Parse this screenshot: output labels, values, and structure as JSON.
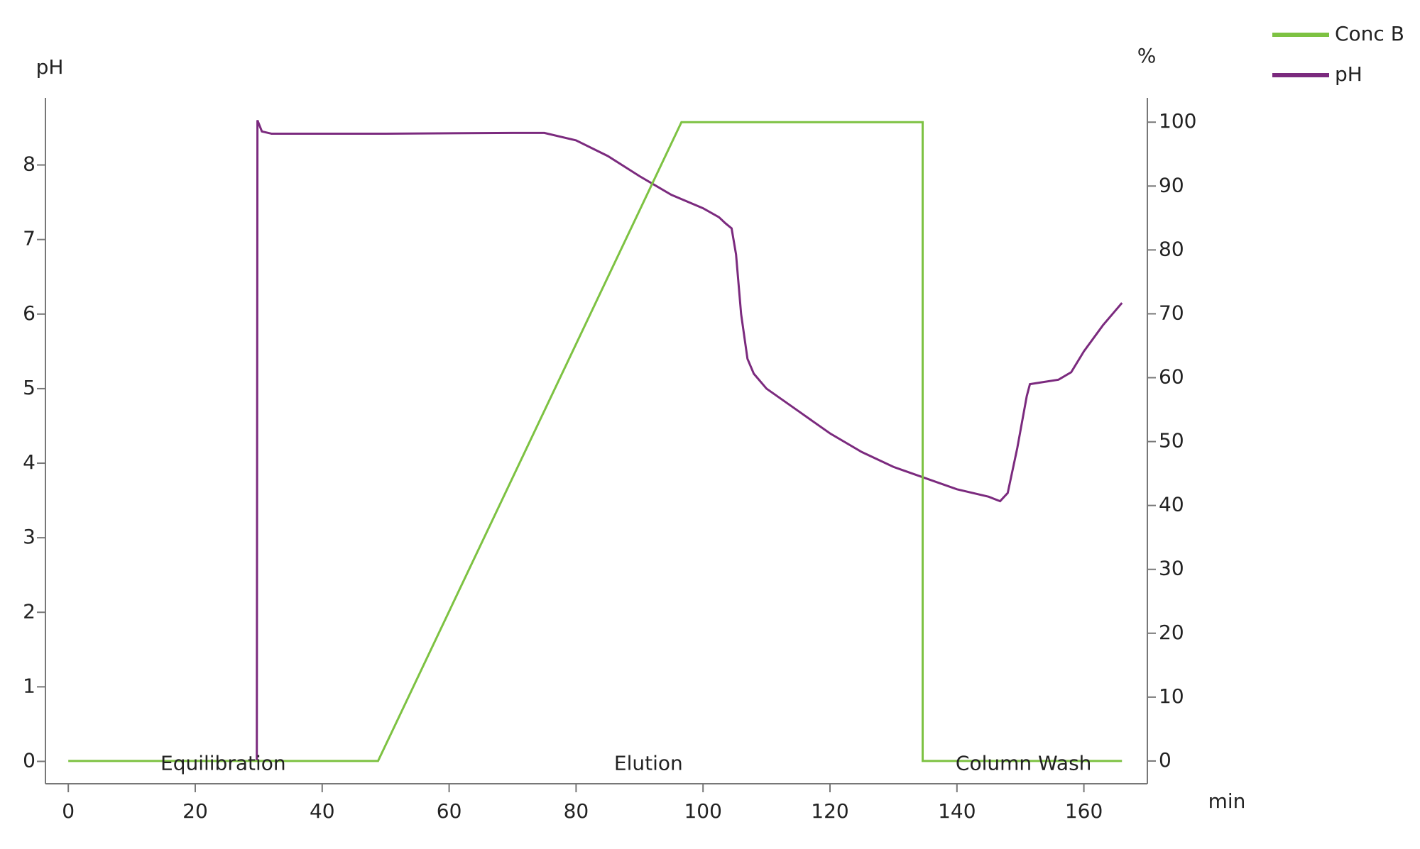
{
  "chart_data": {
    "type": "line",
    "xlabel": "min",
    "ylabel": "pH",
    "y2label": "%",
    "xlim": [
      -3.6,
      170
    ],
    "xticks": [
      0,
      20,
      40,
      60,
      80,
      100,
      120,
      140,
      160
    ],
    "ylim": [
      -0.3,
      8.9
    ],
    "yticks": [
      0,
      1,
      2,
      3,
      4,
      5,
      6,
      7,
      8
    ],
    "y2lim": [
      -3.56,
      103.8
    ],
    "y2ticks": [
      0,
      10,
      20,
      30,
      40,
      50,
      60,
      70,
      80,
      90,
      100
    ],
    "legend": "top-right",
    "series": [
      {
        "name": "Conc B",
        "color": "#7dc242",
        "axis": "y2",
        "x": [
          0,
          48.8,
          96.6,
          134.6,
          134.6,
          166
        ],
        "values": [
          0,
          0,
          100,
          100,
          0,
          0
        ]
      },
      {
        "name": "pH",
        "color": "#7b2a7e",
        "x": [
          29.7,
          29.8,
          30.5,
          32,
          50,
          70,
          75,
          80,
          85,
          90,
          95,
          100,
          102.5,
          103.5,
          104.5,
          105.2,
          106,
          107,
          108,
          110,
          115,
          120,
          125,
          130,
          135,
          140,
          145,
          146.8,
          148,
          149.5,
          151,
          151.5,
          153,
          156,
          158,
          160,
          163,
          166
        ],
        "values": [
          0,
          8.6,
          8.45,
          8.42,
          8.42,
          8.43,
          8.43,
          8.33,
          8.12,
          7.85,
          7.6,
          7.42,
          7.3,
          7.22,
          7.15,
          6.8,
          6.0,
          5.4,
          5.2,
          5.0,
          4.7,
          4.4,
          4.15,
          3.95,
          3.8,
          3.65,
          3.55,
          3.49,
          3.6,
          4.2,
          4.9,
          5.06,
          5.08,
          5.12,
          5.22,
          5.5,
          5.85,
          6.15
        ]
      }
    ],
    "annotations": [
      {
        "label": "Equilibration",
        "x": 24.4
      },
      {
        "label": "Elution",
        "x": 91.4
      },
      {
        "label": "Column Wash",
        "x": 150.5
      }
    ]
  }
}
